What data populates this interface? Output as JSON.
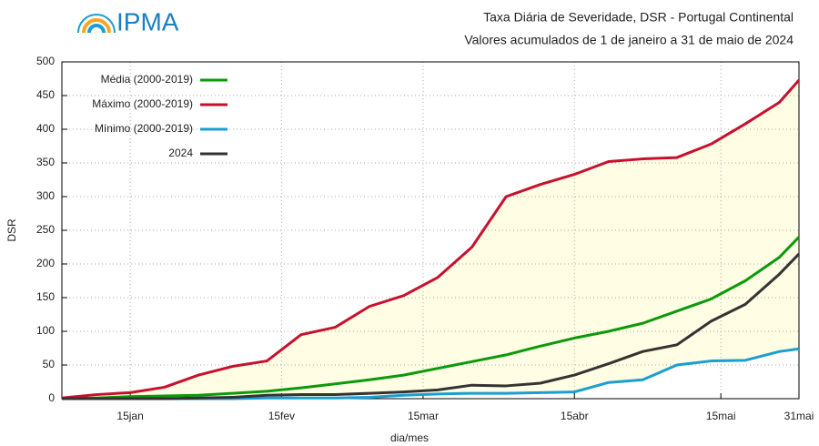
{
  "logo": "IPMA",
  "chart_data": {
    "type": "line",
    "title": "Taxa Diária de Severidade, DSR - Portugal Continental",
    "subtitle": "Valores acumulados de 1 de janeiro a 31 de maio de 2024",
    "x_label": "dia/mes",
    "y_label": "DSR",
    "x": [
      1,
      8,
      15,
      22,
      29,
      36,
      43,
      50,
      57,
      64,
      71,
      78,
      85,
      92,
      99,
      106,
      113,
      120,
      127,
      134,
      141,
      148,
      152
    ],
    "series": [
      {
        "name": "Média (2000-2019)",
        "color": "#0a9a0a",
        "values": [
          0,
          1,
          3,
          4,
          5,
          8,
          11,
          16,
          22,
          28,
          35,
          45,
          55,
          65,
          78,
          90,
          100,
          112,
          130,
          148,
          175,
          210,
          240
        ]
      },
      {
        "name": "Máximo (2000-2019)",
        "color": "#c8102e",
        "values": [
          1,
          6,
          9,
          17,
          35,
          48,
          56,
          95,
          106,
          137,
          153,
          180,
          225,
          300,
          318,
          333,
          352,
          356,
          358,
          378,
          408,
          440,
          473
        ]
      },
      {
        "name": "Mínimo (2000-2019)",
        "color": "#1a9ed4",
        "values": [
          0,
          0,
          0,
          0,
          0,
          0,
          1,
          1,
          1,
          2,
          5,
          7,
          8,
          8,
          9,
          10,
          24,
          28,
          50,
          56,
          57,
          70,
          74
        ]
      },
      {
        "name": "2024",
        "color": "#333333",
        "values": [
          0,
          0,
          0,
          0,
          1,
          2,
          5,
          6,
          6,
          8,
          10,
          13,
          20,
          19,
          23,
          35,
          52,
          70,
          80,
          115,
          140,
          185,
          215
        ]
      }
    ],
    "range_fill": "#fffde3",
    "xlim": [
      1,
      152
    ],
    "xticks": [
      {
        "value": 15,
        "label": "15jan"
      },
      {
        "value": 46,
        "label": "15fev"
      },
      {
        "value": 75,
        "label": "15mar"
      },
      {
        "value": 106,
        "label": "15abr"
      },
      {
        "value": 136,
        "label": "15mai"
      },
      {
        "value": 152,
        "label": "31mai"
      }
    ],
    "ylim": [
      0,
      500
    ],
    "yticks": [
      0,
      50,
      100,
      150,
      200,
      250,
      300,
      350,
      400,
      450,
      500
    ],
    "grid": true,
    "legend": "top-left"
  }
}
